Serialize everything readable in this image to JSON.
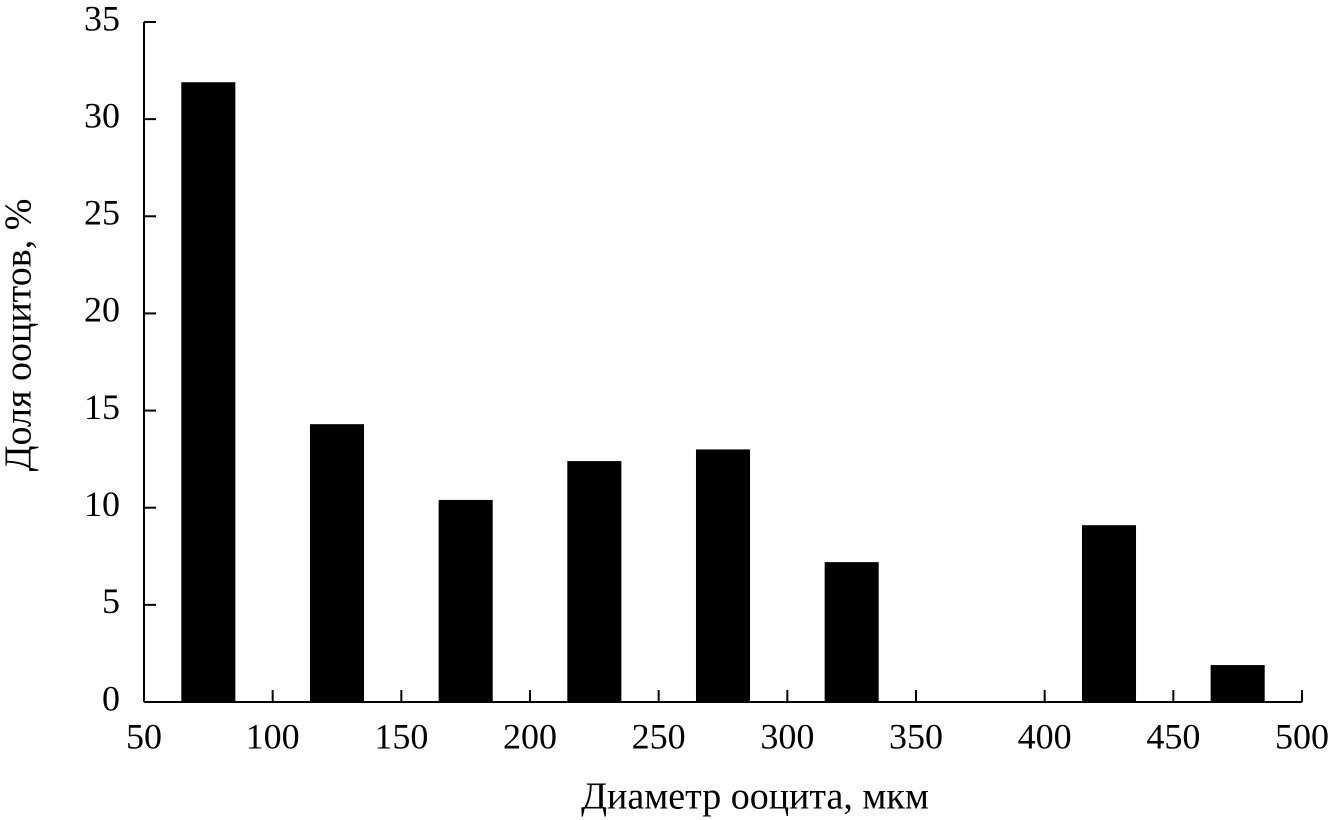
{
  "chart_data": {
    "type": "bar",
    "x_label": "Диаметр ооцита, мкм",
    "y_label": "Доля ооцитов, %",
    "x": [
      75,
      125,
      175,
      225,
      275,
      325,
      375,
      425,
      475
    ],
    "values": [
      31.9,
      14.3,
      10.4,
      12.4,
      13.0,
      7.2,
      0,
      9.1,
      1.9
    ],
    "color": "#000000",
    "xlim": [
      50,
      500
    ],
    "xticks": [
      50,
      100,
      150,
      200,
      250,
      300,
      350,
      400,
      450,
      500
    ],
    "ylim": [
      0,
      35
    ],
    "yticks": [
      0,
      5,
      10,
      15,
      20,
      25,
      30,
      35
    ],
    "grid": false
  }
}
